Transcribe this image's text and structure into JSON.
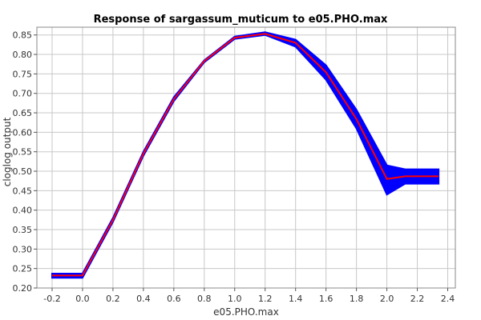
{
  "chart_data": {
    "type": "line",
    "title": "Response of sargassum_muticum to e05.PHO.max",
    "xlabel": "e05.PHO.max",
    "ylabel": "cloglog output",
    "xlim": [
      -0.3,
      2.45
    ],
    "ylim": [
      0.2,
      0.87
    ],
    "x_ticks": [
      -0.2,
      0.0,
      0.2,
      0.4,
      0.6,
      0.8,
      1.0,
      1.2,
      1.4,
      1.6,
      1.8,
      2.0,
      2.2,
      2.4
    ],
    "y_ticks": [
      0.2,
      0.25,
      0.3,
      0.35,
      0.4,
      0.45,
      0.5,
      0.55,
      0.6,
      0.65,
      0.7,
      0.75,
      0.8,
      0.85
    ],
    "grid": true,
    "series": [
      {
        "role": "band",
        "color": "#0000ff",
        "x": [
          -0.2,
          0.0,
          0.2,
          0.4,
          0.6,
          0.8,
          1.0,
          1.2,
          1.4,
          1.6,
          1.8,
          2.0,
          2.12,
          2.34
        ],
        "lower": [
          0.226,
          0.226,
          0.37,
          0.54,
          0.68,
          0.78,
          0.84,
          0.85,
          0.82,
          0.735,
          0.61,
          0.44,
          0.468,
          0.468
        ],
        "upper": [
          0.237,
          0.237,
          0.38,
          0.55,
          0.69,
          0.785,
          0.846,
          0.857,
          0.838,
          0.772,
          0.658,
          0.515,
          0.505,
          0.505
        ]
      },
      {
        "role": "mean",
        "color": "#ff0000",
        "x": [
          -0.2,
          0.0,
          0.2,
          0.4,
          0.6,
          0.8,
          1.0,
          1.2,
          1.4,
          1.6,
          1.8,
          2.0,
          2.12,
          2.34
        ],
        "values": [
          0.232,
          0.232,
          0.375,
          0.545,
          0.685,
          0.783,
          0.843,
          0.853,
          0.83,
          0.754,
          0.634,
          0.48,
          0.487,
          0.487
        ]
      }
    ]
  }
}
